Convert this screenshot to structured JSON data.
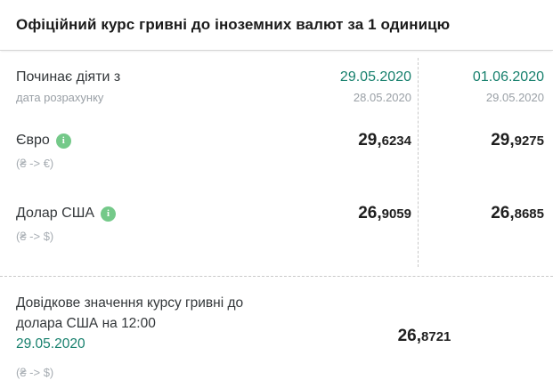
{
  "title": "Офіційний курс гривні до іноземних валют за 1 одиницю",
  "colors": {
    "accent_green": "#17806d",
    "info_icon_green": "#74c989",
    "value_text": "#1f1f1f",
    "muted_text": "#9aa0a6"
  },
  "table": {
    "header": {
      "label": "Починає діяти з",
      "sublabel": "дата розрахунку",
      "col1": {
        "effective_date": "29.05.2020",
        "calc_date": "28.05.2020"
      },
      "col2": {
        "effective_date": "01.06.2020",
        "calc_date": "29.05.2020"
      }
    },
    "rows": [
      {
        "name": "Євро",
        "pair": "(₴ -> €)",
        "info_icon": "i",
        "values": [
          {
            "int": "29,",
            "dec": "6234"
          },
          {
            "int": "29,",
            "dec": "9275"
          }
        ]
      },
      {
        "name": "Долар США",
        "pair": "(₴ -> $)",
        "info_icon": "i",
        "values": [
          {
            "int": "26,",
            "dec": "9059"
          },
          {
            "int": "26,",
            "dec": "8685"
          }
        ]
      }
    ]
  },
  "reference": {
    "label_line1": "Довідкове значення курсу гривні до",
    "label_line2": "долара США на 12:00",
    "date": "29.05.2020",
    "pair": "(₴ -> $)",
    "value": {
      "int": "26,",
      "dec": "8721"
    }
  }
}
